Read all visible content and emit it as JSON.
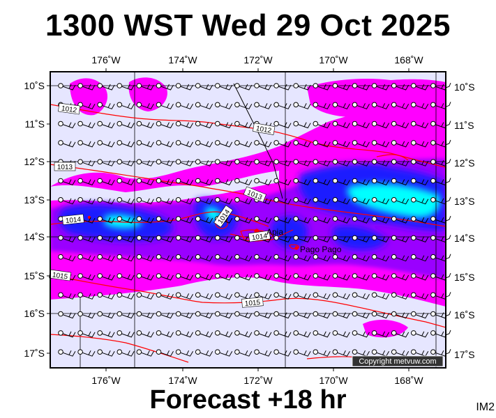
{
  "header": {
    "title": "1300 WST Wed 29 Oct 2025"
  },
  "footer": {
    "forecast": "Forecast +18 hr",
    "image_id": "IM2"
  },
  "map": {
    "copyright": "Copyright metvuw.com",
    "lon_ticks": [
      "176˚W",
      "174˚W",
      "172˚W",
      "170˚W",
      "168˚W"
    ],
    "lat_ticks": [
      "10˚S",
      "11˚S",
      "12˚S",
      "13˚S",
      "14˚S",
      "15˚S",
      "16˚S",
      "17˚S"
    ],
    "isobar_labels": [
      "1012",
      "1012",
      "1013",
      "1013",
      "1014",
      "1014",
      "1014",
      "1015",
      "1015"
    ],
    "places": [
      "Apia",
      "Pago Pago"
    ],
    "colors": {
      "background": "#e6e6ff",
      "rain_light": "#ff00ff",
      "rain_medium": "#9a00ff",
      "rain_heavy": "#1e1eff",
      "rain_very_heavy": "#00ffff",
      "isobar": "#ff0000",
      "land": "#ff0000"
    }
  }
}
